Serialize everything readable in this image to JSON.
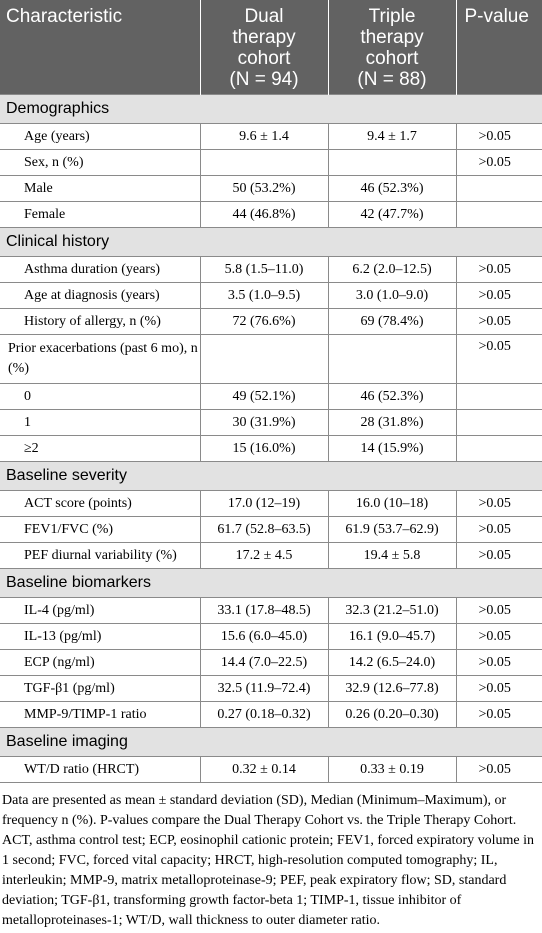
{
  "header": {
    "characteristic": "Characteristic",
    "dual_line1": "Dual",
    "dual_line2": "therapy",
    "dual_line3": "cohort",
    "dual_n": "(N = 94)",
    "triple_line1": "Triple",
    "triple_line2": "therapy",
    "triple_line3": "cohort",
    "triple_n": "(N = 88)",
    "pvalue": "P-value"
  },
  "sections": {
    "demographics": "Demographics",
    "clinical": "Clinical history",
    "severity": "Baseline severity",
    "biomarkers": "Baseline biomarkers",
    "imaging": "Baseline imaging"
  },
  "rows": [
    {
      "label": "Age (years)",
      "dual": "9.6 ± 1.4",
      "triple": "9.4 ± 1.7",
      "p": ">0.05"
    },
    {
      "label": "Sex, n (%)",
      "dual": "",
      "triple": "",
      "p": ">0.05"
    },
    {
      "label": "Male",
      "dual": "50 (53.2%)",
      "triple": "46 (52.3%)",
      "p": ""
    },
    {
      "label": "Female",
      "dual": "44 (46.8%)",
      "triple": "42 (47.7%)",
      "p": ""
    },
    {
      "label": "Asthma duration (years)",
      "dual": "5.8 (1.5–11.0)",
      "triple": "6.2 (2.0–12.5)",
      "p": ">0.05"
    },
    {
      "label": "Age at diagnosis (years)",
      "dual": "3.5 (1.0–9.5)",
      "triple": "3.0 (1.0–9.0)",
      "p": ">0.05"
    },
    {
      "label": "History of allergy, n (%)",
      "dual": "72 (76.6%)",
      "triple": "69 (78.4%)",
      "p": ">0.05"
    },
    {
      "label": "Prior exacerbations (past 6 mo), n (%)",
      "dual": "",
      "triple": "",
      "p": ">0.05"
    },
    {
      "label": "0",
      "dual": "49 (52.1%)",
      "triple": "46 (52.3%)",
      "p": ""
    },
    {
      "label": "1",
      "dual": "30 (31.9%)",
      "triple": "28 (31.8%)",
      "p": ""
    },
    {
      "label": "≥2",
      "dual": "15 (16.0%)",
      "triple": "14 (15.9%)",
      "p": ""
    },
    {
      "label": "ACT score (points)",
      "dual": "17.0 (12–19)",
      "triple": "16.0 (10–18)",
      "p": ">0.05"
    },
    {
      "label": "FEV1/FVC (%)",
      "dual": "61.7 (52.8–63.5)",
      "triple": "61.9 (53.7–62.9)",
      "p": ">0.05"
    },
    {
      "label": "PEF diurnal variability (%)",
      "dual": "17.2 ± 4.5",
      "triple": "19.4 ± 5.8",
      "p": ">0.05"
    },
    {
      "label": "IL-4 (pg/ml)",
      "dual": "33.1 (17.8–48.5)",
      "triple": "32.3 (21.2–51.0)",
      "p": ">0.05"
    },
    {
      "label": "IL-13 (pg/ml)",
      "dual": "15.6 (6.0–45.0)",
      "triple": "16.1 (9.0–45.7)",
      "p": ">0.05"
    },
    {
      "label": "ECP (ng/ml)",
      "dual": "14.4 (7.0–22.5)",
      "triple": "14.2 (6.5–24.0)",
      "p": ">0.05"
    },
    {
      "label": "TGF-β1 (pg/ml)",
      "dual": "32.5 (11.9–72.4)",
      "triple": "32.9 (12.6–77.8)",
      "p": ">0.05"
    },
    {
      "label": "MMP-9/TIMP-1 ratio",
      "dual": "0.27 (0.18–0.32)",
      "triple": "0.26 (0.20–0.30)",
      "p": ">0.05"
    },
    {
      "label": "WT/D ratio (HRCT)",
      "dual": "0.32 ± 0.14",
      "triple": "0.33 ± 0.19",
      "p": ">0.05"
    }
  ],
  "footnote": "Data are presented as mean ± standard deviation (SD), Median (Minimum–Maximum), or frequency n (%). P-values compare the Dual Therapy Cohort vs. the Triple Therapy Cohort. ACT, asthma control test; ECP, eosinophil cationic protein; FEV1, forced expiratory volume in 1 second; FVC, forced vital capacity; HRCT, high-resolution computed tomography; IL, interleukin; MMP-9, matrix metalloproteinase-9; PEF, peak expiratory flow; SD, standard deviation; TGF-β1, transforming growth factor-beta 1; TIMP-1, tissue inhibitor of metalloproteinases-1; WT/D, wall thickness to outer diameter ratio."
}
